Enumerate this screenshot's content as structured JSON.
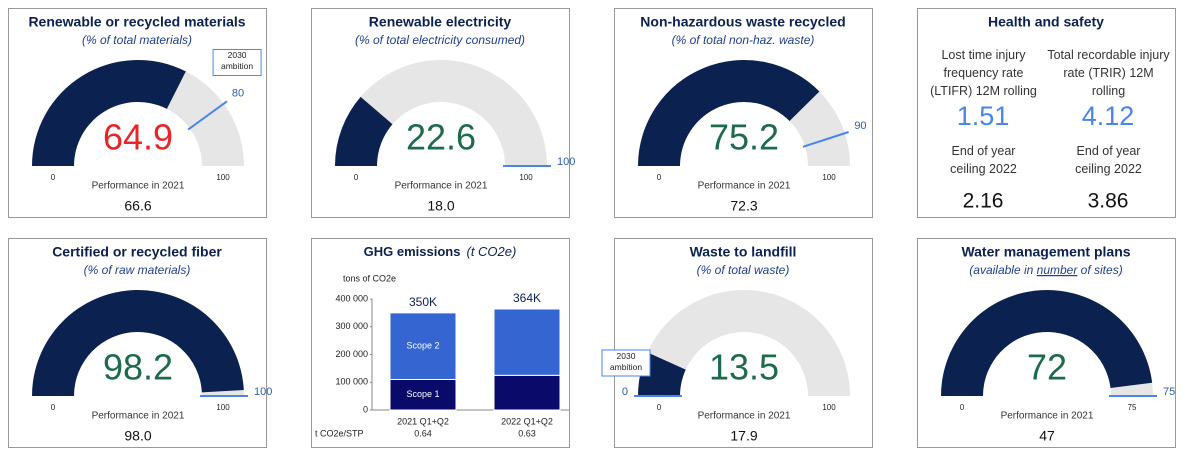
{
  "chart_data": [
    {
      "type": "gauge",
      "title": "Renewable or recycled materials",
      "subtitle": "(% of total materials)",
      "value": 64.9,
      "value_color": "#e8262a",
      "color": "#0b2150",
      "track_color": "#e6e6e6",
      "target": 80,
      "target_color": "#4a86e8",
      "target_note": "2030 ambition",
      "ylim": [
        0,
        100
      ],
      "ticks": [
        0,
        100
      ],
      "footer": "Performance in 2021",
      "prior": "66.6"
    },
    {
      "type": "gauge",
      "title": "Renewable electricity",
      "subtitle": "(% of total electricity consumed)",
      "value": 22.6,
      "value_color": "#1e6b4c",
      "color": "#0b2150",
      "track_color": "#e6e6e6",
      "target": 100,
      "target_color": "#4a86e8",
      "ylim": [
        0,
        100
      ],
      "ticks": [
        0,
        100
      ],
      "footer": "Performance in 2021",
      "prior": "18.0"
    },
    {
      "type": "gauge",
      "title": "Non-hazardous waste recycled",
      "subtitle": "(% of total non-haz. waste)",
      "value": 75.2,
      "value_color": "#1e6b4c",
      "color": "#0b2150",
      "track_color": "#e6e6e6",
      "target": 90,
      "target_color": "#4a86e8",
      "ylim": [
        0,
        100
      ],
      "ticks": [
        0,
        100
      ],
      "footer": "Performance in 2021",
      "prior": "72.3"
    },
    {
      "type": "kpi",
      "title": "Health and safety",
      "items": [
        {
          "label": "Lost time injury frequency rate (LTIFR) 12M rolling",
          "value": 1.51,
          "ceiling_label": "End of year ceiling 2022",
          "ceiling": 2.16
        },
        {
          "label": "Total recordable injury rate (TRIR) 12M rolling",
          "value": 4.12,
          "ceiling_label": "End of year ceiling 2022",
          "ceiling": 3.86
        }
      ]
    },
    {
      "type": "gauge",
      "title": "Certified or recycled fiber",
      "subtitle": "(% of raw materials)",
      "value": 98.2,
      "value_color": "#1e6b4c",
      "color": "#0b2150",
      "track_color": "#e6e6e6",
      "target": 100,
      "target_color": "#4a86e8",
      "ylim": [
        0,
        100
      ],
      "ticks": [
        0,
        100
      ],
      "footer": "Performance in 2021",
      "prior": "98.0"
    },
    {
      "type": "bar",
      "stacked": true,
      "title": "GHG emissions",
      "subtitle": "(t CO2e)",
      "y_label": "tons of CO2e",
      "categories": [
        "2021 Q1+Q2",
        "2022 Q1+Q2"
      ],
      "series": [
        {
          "name": "Scope 1",
          "color": "#0a0a6b",
          "values": [
            110000,
            125000
          ]
        },
        {
          "name": "Scope 2",
          "color": "#3465d0",
          "values": [
            240000,
            239000
          ]
        }
      ],
      "total_labels": [
        "350K",
        "364K"
      ],
      "ylim": [
        0,
        400000
      ],
      "yticks": [
        0,
        {
          "value": 100000,
          "label": "100 000"
        },
        {
          "value": 200000,
          "label": "200 000"
        },
        {
          "value": 300000,
          "label": "300 000"
        },
        {
          "value": 400000,
          "label": "400 000"
        }
      ],
      "footer_label": "t CO2e/STP",
      "footer_values": [
        0.64,
        0.63
      ]
    },
    {
      "type": "gauge",
      "title": "Waste to landfill",
      "subtitle": "(% of total waste)",
      "value": 13.5,
      "value_color": "#1e6b4c",
      "color": "#0b2150",
      "track_color": "#e6e6e6",
      "target": 0,
      "target_color": "#4a86e8",
      "target_note": "2030 ambition",
      "ylim": [
        0,
        100
      ],
      "ticks": [
        0,
        100
      ],
      "footer": "Performance in 2021",
      "prior": "17.9"
    },
    {
      "type": "gauge",
      "title": "Water management plans",
      "subtitle_parts": [
        "(available in ",
        "number",
        " of sites)"
      ],
      "value": 72,
      "value_color": "#1e6b4c",
      "color": "#0b2150",
      "track_color": "#e6e6e6",
      "target": 75,
      "target_color": "#4a86e8",
      "ylim": [
        0,
        75
      ],
      "ticks": [
        0,
        75
      ],
      "footer": "Performance in 2021",
      "prior": "47"
    }
  ]
}
